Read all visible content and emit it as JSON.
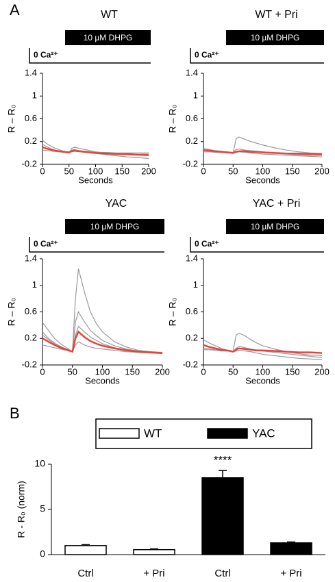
{
  "panel_labels": [
    "A",
    "B"
  ],
  "chart_data": [
    {
      "type": "line",
      "title": "WT",
      "stimulus": "10 µM DHPG",
      "condition": "0 Ca²⁺",
      "ylabel": "R – R₀",
      "xlabel": "Seconds",
      "x": [
        0,
        10,
        20,
        30,
        40,
        50,
        55,
        60,
        70,
        80,
        90,
        100,
        120,
        140,
        160,
        180,
        200
      ],
      "xlim": [
        0,
        200
      ],
      "xticks": [
        0,
        50,
        100,
        150,
        200
      ],
      "ylim": [
        -0.2,
        1.4
      ],
      "yticks": [
        -0.2,
        0.2,
        0.6,
        1,
        1.4
      ],
      "series": [
        {
          "color": "#999999",
          "values": [
            0.22,
            0.15,
            0.1,
            0.06,
            0.03,
            0.0,
            0.08,
            0.1,
            0.08,
            0.06,
            0.04,
            0.02,
            0.0,
            -0.02,
            -0.03,
            -0.04,
            -0.05
          ]
        },
        {
          "color": "#999999",
          "values": [
            0.05,
            0.04,
            0.03,
            0.02,
            0.02,
            0.01,
            0.02,
            0.03,
            0.02,
            0.01,
            0.0,
            -0.01,
            -0.03,
            -0.05,
            -0.07,
            -0.08,
            -0.1
          ]
        },
        {
          "color": "#999999",
          "values": [
            0.15,
            0.1,
            0.06,
            0.03,
            0.01,
            0.0,
            0.05,
            0.06,
            0.04,
            0.03,
            0.02,
            0.01,
            0.01,
            0.0,
            0.0,
            0.0,
            0.0
          ]
        },
        {
          "color": "#e8413b",
          "values": [
            0.1,
            0.07,
            0.05,
            0.03,
            0.02,
            0.01,
            0.03,
            0.04,
            0.03,
            0.02,
            0.01,
            0.0,
            -0.01,
            -0.02,
            -0.02,
            -0.03,
            -0.03
          ]
        }
      ]
    },
    {
      "type": "line",
      "title": "WT + Pri",
      "stimulus": "10 µM DHPG",
      "condition": "0 Ca²⁺",
      "ylabel": "R – R₀",
      "xlabel": "Seconds",
      "x": [
        0,
        10,
        20,
        30,
        40,
        50,
        55,
        60,
        70,
        80,
        90,
        100,
        120,
        140,
        160,
        180,
        200
      ],
      "xlim": [
        0,
        200
      ],
      "xticks": [
        0,
        50,
        100,
        150,
        200
      ],
      "ylim": [
        -0.2,
        1.4
      ],
      "yticks": [
        -0.2,
        0.2,
        0.6,
        1,
        1.4
      ],
      "series": [
        {
          "color": "#999999",
          "values": [
            0.05,
            0.04,
            0.03,
            0.02,
            0.01,
            0.0,
            0.25,
            0.28,
            0.24,
            0.2,
            0.17,
            0.14,
            0.09,
            0.05,
            0.02,
            0.0,
            -0.01
          ]
        },
        {
          "color": "#999999",
          "values": [
            0.08,
            0.06,
            0.04,
            0.03,
            0.02,
            0.01,
            0.06,
            0.07,
            0.05,
            0.04,
            0.03,
            0.02,
            0.0,
            -0.02,
            -0.03,
            -0.04,
            -0.05
          ]
        },
        {
          "color": "#999999",
          "values": [
            0.02,
            0.02,
            0.01,
            0.01,
            0.0,
            0.0,
            0.01,
            0.02,
            0.01,
            0.0,
            -0.01,
            -0.02,
            -0.03,
            -0.04,
            -0.05,
            -0.06,
            -0.07
          ]
        },
        {
          "color": "#e8413b",
          "values": [
            0.05,
            0.04,
            0.03,
            0.02,
            0.01,
            0.0,
            0.02,
            0.03,
            0.03,
            0.02,
            0.02,
            0.01,
            0.0,
            -0.01,
            -0.01,
            -0.02,
            -0.02
          ]
        }
      ]
    },
    {
      "type": "line",
      "title": "YAC",
      "stimulus": "10 µM DHPG",
      "condition": "0 Ca²⁺",
      "ylabel": "R – R₀",
      "xlabel": "Seconds",
      "x": [
        0,
        10,
        20,
        30,
        40,
        50,
        55,
        60,
        70,
        80,
        90,
        100,
        120,
        140,
        160,
        180,
        200
      ],
      "xlim": [
        0,
        200
      ],
      "xticks": [
        0,
        50,
        100,
        150,
        200
      ],
      "ylim": [
        -0.2,
        1.4
      ],
      "yticks": [
        -0.2,
        0.2,
        0.6,
        1,
        1.4
      ],
      "series": [
        {
          "color": "#999999",
          "values": [
            0.44,
            0.32,
            0.2,
            0.12,
            0.06,
            0.0,
            0.8,
            1.25,
            0.9,
            0.6,
            0.42,
            0.3,
            0.15,
            0.07,
            0.02,
            0.0,
            -0.02
          ]
        },
        {
          "color": "#999999",
          "values": [
            0.3,
            0.2,
            0.13,
            0.08,
            0.04,
            0.0,
            0.45,
            0.6,
            0.45,
            0.32,
            0.24,
            0.17,
            0.09,
            0.04,
            0.01,
            -0.01,
            -0.02
          ]
        },
        {
          "color": "#999999",
          "values": [
            0.1,
            0.08,
            0.06,
            0.04,
            0.02,
            0.0,
            0.1,
            0.15,
            0.1,
            0.07,
            0.05,
            0.04,
            0.02,
            0.0,
            -0.01,
            -0.02,
            -0.03
          ]
        },
        {
          "color": "#999999",
          "values": [
            0.25,
            0.18,
            0.12,
            0.07,
            0.03,
            0.0,
            0.25,
            0.38,
            0.3,
            0.22,
            0.17,
            0.12,
            0.06,
            0.03,
            0.01,
            0.0,
            -0.01
          ]
        },
        {
          "color": "#e8413b",
          "values": [
            0.2,
            0.15,
            0.1,
            0.06,
            0.03,
            0.0,
            0.2,
            0.3,
            0.22,
            0.16,
            0.12,
            0.09,
            0.05,
            0.02,
            0.0,
            -0.01,
            -0.02
          ]
        }
      ]
    },
    {
      "type": "line",
      "title": "YAC + Pri",
      "stimulus": "10 µM DHPG",
      "condition": "0 Ca²⁺",
      "ylabel": "R – R₀",
      "xlabel": "Seconds",
      "x": [
        0,
        10,
        20,
        30,
        40,
        50,
        55,
        60,
        70,
        80,
        90,
        100,
        120,
        140,
        160,
        180,
        200
      ],
      "xlim": [
        0,
        200
      ],
      "xticks": [
        0,
        50,
        100,
        150,
        200
      ],
      "ylim": [
        -0.2,
        1.4
      ],
      "yticks": [
        -0.2,
        0.2,
        0.6,
        1,
        1.4
      ],
      "series": [
        {
          "color": "#999999",
          "values": [
            0.05,
            0.04,
            0.03,
            0.02,
            0.01,
            0.0,
            0.25,
            0.28,
            0.24,
            0.18,
            0.13,
            0.09,
            0.04,
            0.0,
            -0.03,
            -0.05,
            -0.06
          ]
        },
        {
          "color": "#999999",
          "values": [
            0.18,
            0.13,
            0.09,
            0.05,
            0.02,
            0.0,
            0.05,
            0.08,
            0.06,
            0.04,
            0.02,
            0.01,
            -0.01,
            -0.03,
            -0.05,
            -0.07,
            -0.09
          ]
        },
        {
          "color": "#999999",
          "values": [
            0.03,
            0.03,
            0.02,
            0.01,
            0.01,
            0.0,
            0.01,
            0.02,
            0.01,
            0.0,
            -0.02,
            -0.04,
            -0.06,
            -0.08,
            -0.1,
            -0.11,
            -0.12
          ]
        },
        {
          "color": "#e8413b",
          "values": [
            0.1,
            0.07,
            0.05,
            0.03,
            0.02,
            0.0,
            0.03,
            0.05,
            0.04,
            0.03,
            0.02,
            0.02,
            0.01,
            0.0,
            -0.01,
            -0.01,
            -0.02
          ]
        }
      ]
    },
    {
      "type": "bar",
      "ylabel": "R - R₀ (norm)",
      "categories": [
        "Ctrl",
        "+ Pri",
        "Ctrl",
        "+ Pri"
      ],
      "values": [
        1.0,
        0.55,
        8.5,
        1.3
      ],
      "errors": [
        0.1,
        0.08,
        0.8,
        0.1
      ],
      "colors": [
        "#ffffff",
        "#ffffff",
        "#000000",
        "#000000"
      ],
      "legend": [
        {
          "name": "WT",
          "color": "#ffffff"
        },
        {
          "name": "YAC",
          "color": "#000000"
        }
      ],
      "annotation": {
        "text": "****",
        "category": 2
      },
      "ylim": [
        0,
        10
      ],
      "yticks": [
        0,
        5,
        10
      ]
    }
  ]
}
